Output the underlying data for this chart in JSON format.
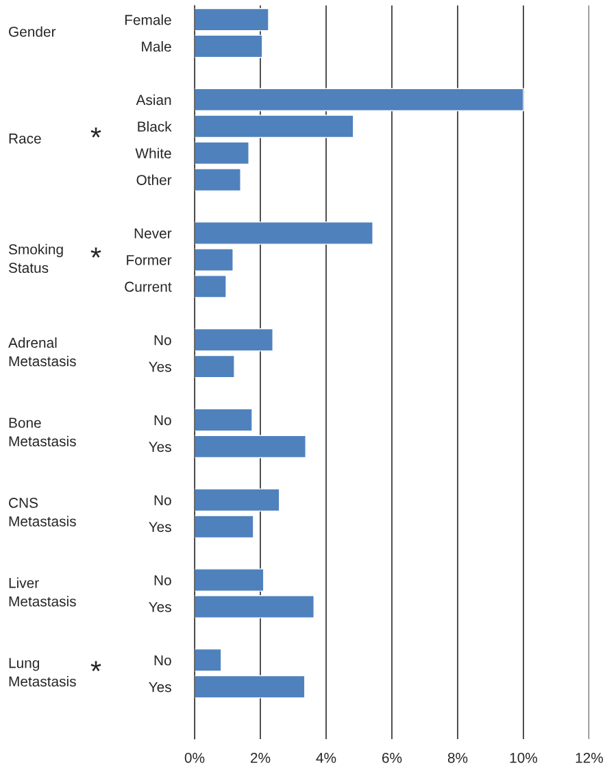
{
  "chart_data": {
    "type": "bar",
    "orientation": "horizontal",
    "categories": [
      "Female",
      "Male",
      null,
      "Asian",
      "Black",
      "White",
      "Other",
      null,
      "Never",
      "Former",
      "Current",
      null,
      "No",
      "Yes",
      null,
      "No",
      "Yes",
      null,
      "No",
      "Yes",
      null,
      "No",
      "Yes",
      null,
      "No",
      "Yes"
    ],
    "values": [
      2.25,
      2.06,
      null,
      10.0,
      4.83,
      1.65,
      1.4,
      null,
      5.42,
      1.17,
      0.96,
      null,
      2.38,
      1.21,
      null,
      1.75,
      3.38,
      null,
      2.58,
      1.79,
      null,
      2.1,
      3.63,
      null,
      0.81,
      3.35
    ],
    "color": "#4f81bd",
    "xlim": [
      0,
      12
    ],
    "xticks": [
      {
        "value": 0,
        "label": "0%"
      },
      {
        "value": 2,
        "label": "2%"
      },
      {
        "value": 4,
        "label": "4%"
      },
      {
        "value": 6,
        "label": "6%"
      },
      {
        "value": 8,
        "label": "8%"
      },
      {
        "value": 10,
        "label": "10%"
      },
      {
        "value": 12,
        "label": "12%"
      }
    ],
    "grid": "x",
    "annotations": [
      "Gender",
      "Race",
      {
        "text": "*"
      },
      "Smoking\nStatus",
      {
        "text": "*"
      },
      "Adrenal\nMetastasis",
      "Bone\nMetastasis",
      "CNS\nMetastasis",
      "Liver\nMetastasis",
      "Lung\nMetastasis",
      {
        "text": "*"
      }
    ]
  }
}
